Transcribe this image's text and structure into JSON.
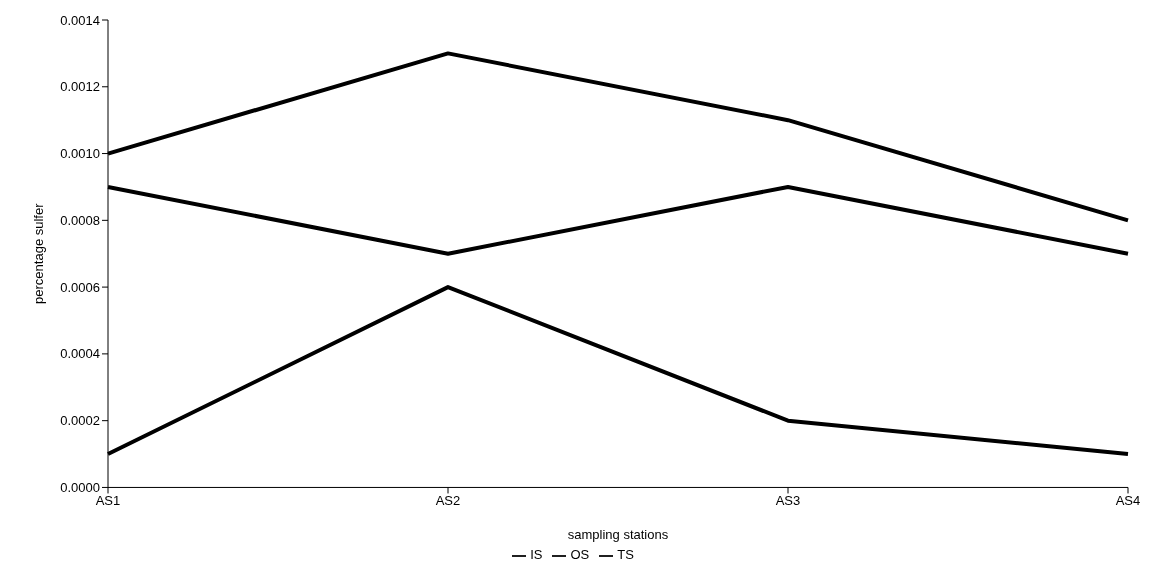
{
  "chart_data": {
    "type": "line",
    "xlabel": "sampling stations",
    "ylabel": "percentage sulfer",
    "categories": [
      "AS1",
      "AS2",
      "AS3",
      "AS4"
    ],
    "series": [
      {
        "name": "TS",
        "color": "#000000",
        "values": [
          0.001,
          0.0013,
          0.0011,
          0.0008
        ]
      },
      {
        "name": "IS",
        "color": "#000000",
        "values": [
          0.0009,
          0.0007,
          0.0009,
          0.0007
        ]
      },
      {
        "name": "OS",
        "color": "#000000",
        "values": [
          0.0001,
          0.0006,
          0.0002,
          0.0001
        ]
      }
    ],
    "ylim": [
      0,
      0.0014
    ],
    "yticks": [
      {
        "value": 0,
        "label": "0.0000"
      },
      {
        "value": 0.0002,
        "label": "0.0002"
      },
      {
        "value": 0.0004,
        "label": "0.0004"
      },
      {
        "value": 0.0006,
        "label": "0.0006"
      },
      {
        "value": 0.0008,
        "label": "0.0008"
      },
      {
        "value": 0.001,
        "label": "0.0010"
      },
      {
        "value": 0.0012,
        "label": "0.0012"
      },
      {
        "value": 0.0014,
        "label": "0.0014"
      }
    ],
    "grid": false,
    "legend": "bottom",
    "marker": "none",
    "line_style": "solid"
  }
}
